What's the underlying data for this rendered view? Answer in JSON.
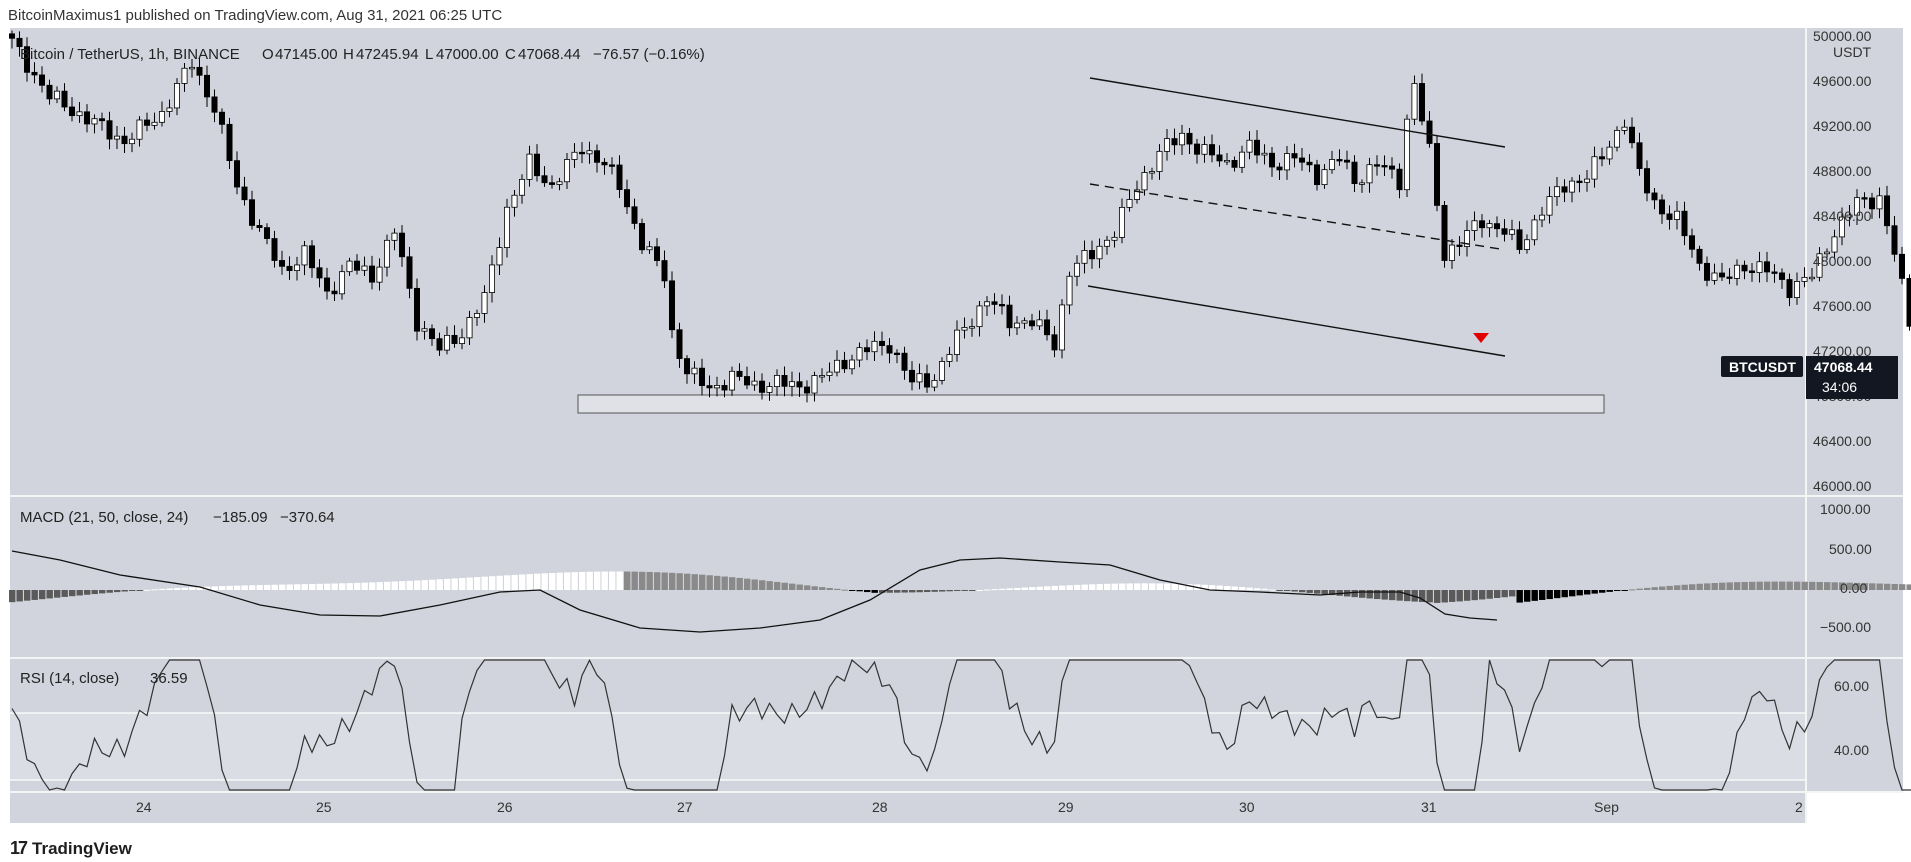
{
  "header": {
    "published_by": "BitcoinMaximus1 published on TradingView.com, Aug 31, 2021 06:25 UTC"
  },
  "legend": {
    "symbol": "Bitcoin / TetherUS, 1h, BINANCE",
    "open_label": "O",
    "open": "47145.00",
    "high_label": "H",
    "high": "47245.94",
    "low_label": "L",
    "low": "47000.00",
    "close_label": "C",
    "close": "47068.44",
    "change": "−76.57 (−0.16%)"
  },
  "price_badge": {
    "symbol": "BTCUSDT",
    "price": "47068.44",
    "countdown": "34:06"
  },
  "footer": {
    "icon": "tradingview-logo-icon",
    "brand": "TradingView"
  },
  "colors": {
    "pane_bg": "#d1d4dc",
    "candle_up": "#ffffff",
    "candle_down": "#000000",
    "outline": "#000000",
    "arrow": "#e00000",
    "badge": "#131722"
  },
  "chart_data": [
    {
      "type": "candlestick",
      "pane": "price",
      "unit_label": "USDT",
      "x_ticks": [
        "24",
        "25",
        "26",
        "27",
        "28",
        "29",
        "30",
        "31",
        "Sep",
        "2"
      ],
      "y_ticks": [
        "50000.00",
        "49600.00",
        "49200.00",
        "48800.00",
        "48400.00",
        "48000.00",
        "47600.00",
        "47200.00",
        "46800.00",
        "46400.00",
        "46000.00"
      ],
      "ylim": [
        46000,
        50000
      ],
      "descending_channel": {
        "upper_line": {
          "from": {
            "time": "Aug 29 03:00",
            "price": 49630
          },
          "to": {
            "time": "Aug 31 09:00",
            "price": 49030
          }
        },
        "middle_line_dashed": {
          "from": {
            "time": "Aug 29 03:00",
            "price": 48740
          },
          "to": {
            "time": "Aug 31 09:00",
            "price": 48100
          }
        },
        "lower_line": {
          "from": {
            "time": "Aug 29 03:00",
            "price": 47780
          },
          "to": {
            "time": "Aug 31 09:00",
            "price": 47180
          }
        }
      },
      "support_zone": {
        "from_time": "Aug 26 08:00",
        "to_time": "Sep 1 00:00",
        "price_low": 46680,
        "price_high": 46860
      },
      "rejection_arrow": {
        "time": "Aug 31 07:00",
        "price": 47330,
        "direction": "down"
      }
    },
    {
      "type": "line+bar",
      "pane": "macd",
      "title": "MACD (21, 50, close, 24)",
      "values": [
        "−185.09",
        "−370.64"
      ],
      "y_ticks": [
        "1000.00",
        "500.00",
        "0.00",
        "−500.00"
      ],
      "ylim": [
        -700,
        1000
      ]
    },
    {
      "type": "line",
      "pane": "rsi",
      "title": "RSI (14, close)",
      "value": "36.59",
      "y_ticks": [
        "60.00",
        "40.00"
      ],
      "ylim": [
        28,
        65
      ],
      "band": [
        30,
        55
      ]
    }
  ]
}
